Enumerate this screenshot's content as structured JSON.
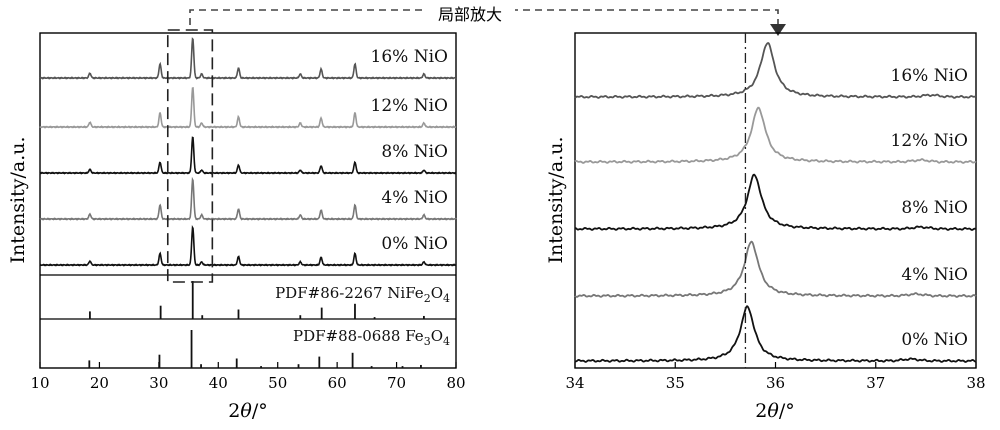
{
  "annotation": {
    "zoom_label": "局部放大"
  },
  "chart_data": [
    {
      "type": "line",
      "panel": "left",
      "xlabel_main": "2",
      "xlabel_symbol": "θ",
      "xlabel_unit": "/°",
      "ylabel": "Intensity/a.u.",
      "xlim": [
        10,
        80
      ],
      "xticks": [
        10,
        20,
        30,
        40,
        50,
        60,
        70,
        80
      ],
      "zoom_box_x": [
        31.5,
        39.0
      ],
      "series": [
        {
          "name": "16% NiO",
          "color": "#555555",
          "peaks": [
            [
              18.4,
              0.12
            ],
            [
              30.2,
              0.35
            ],
            [
              35.7,
              1.0
            ],
            [
              37.2,
              0.1
            ],
            [
              43.4,
              0.25
            ],
            [
              53.8,
              0.1
            ],
            [
              57.3,
              0.22
            ],
            [
              63.0,
              0.35
            ],
            [
              74.6,
              0.1
            ]
          ]
        },
        {
          "name": "12% NiO",
          "color": "#999999",
          "peaks": [
            [
              18.4,
              0.12
            ],
            [
              30.2,
              0.35
            ],
            [
              35.7,
              1.0
            ],
            [
              37.2,
              0.1
            ],
            [
              43.4,
              0.25
            ],
            [
              53.8,
              0.1
            ],
            [
              57.3,
              0.22
            ],
            [
              63.0,
              0.35
            ],
            [
              74.6,
              0.1
            ]
          ]
        },
        {
          "name": "8% NiO",
          "color": "#111111",
          "peaks": [
            [
              18.4,
              0.1
            ],
            [
              30.2,
              0.3
            ],
            [
              35.7,
              1.0
            ],
            [
              37.2,
              0.08
            ],
            [
              43.4,
              0.22
            ],
            [
              53.8,
              0.08
            ],
            [
              57.3,
              0.2
            ],
            [
              63.0,
              0.3
            ],
            [
              74.6,
              0.08
            ]
          ]
        },
        {
          "name": "4% NiO",
          "color": "#777777",
          "peaks": [
            [
              18.4,
              0.12
            ],
            [
              30.2,
              0.35
            ],
            [
              35.7,
              1.0
            ],
            [
              37.2,
              0.1
            ],
            [
              43.4,
              0.25
            ],
            [
              53.8,
              0.1
            ],
            [
              57.3,
              0.22
            ],
            [
              63.0,
              0.35
            ],
            [
              74.6,
              0.1
            ]
          ]
        },
        {
          "name": "0% NiO",
          "color": "#111111",
          "peaks": [
            [
              18.4,
              0.1
            ],
            [
              30.2,
              0.3
            ],
            [
              35.7,
              1.0
            ],
            [
              37.2,
              0.08
            ],
            [
              43.4,
              0.22
            ],
            [
              53.8,
              0.08
            ],
            [
              57.3,
              0.2
            ],
            [
              63.0,
              0.3
            ],
            [
              74.6,
              0.08
            ]
          ]
        }
      ],
      "references": [
        {
          "label_main": "PDF#86-2267 NiFe",
          "label_sub1": "2",
          "label_mid": "O",
          "label_sub2": "4",
          "sticks": [
            [
              18.4,
              0.2
            ],
            [
              30.3,
              0.35
            ],
            [
              35.7,
              1.0
            ],
            [
              37.3,
              0.1
            ],
            [
              43.4,
              0.25
            ],
            [
              53.8,
              0.1
            ],
            [
              57.4,
              0.3
            ],
            [
              63.0,
              0.4
            ],
            [
              66.3,
              0.05
            ],
            [
              74.6,
              0.08
            ]
          ]
        },
        {
          "label_main": "PDF#88-0688 Fe",
          "label_sub1": "3",
          "label_mid": "O",
          "label_sub2": "4",
          "sticks": [
            [
              18.3,
              0.2
            ],
            [
              30.1,
              0.35
            ],
            [
              35.5,
              1.0
            ],
            [
              37.1,
              0.1
            ],
            [
              43.1,
              0.25
            ],
            [
              47.2,
              0.05
            ],
            [
              53.5,
              0.1
            ],
            [
              57.0,
              0.3
            ],
            [
              62.6,
              0.4
            ],
            [
              65.8,
              0.05
            ],
            [
              71.0,
              0.05
            ],
            [
              74.1,
              0.08
            ]
          ]
        }
      ]
    },
    {
      "type": "line",
      "panel": "right",
      "xlabel_main": "2",
      "xlabel_symbol": "θ",
      "xlabel_unit": "/°",
      "ylabel": "Intensity/a.u.",
      "xlim": [
        34,
        38
      ],
      "xticks": [
        34,
        35,
        36,
        37,
        38
      ],
      "reference_line_x": 35.7,
      "series": [
        {
          "name": "16% NiO",
          "color": "#555555",
          "peak_x": 35.92,
          "peak_height": 0.36,
          "minor_x": 37.55
        },
        {
          "name": "12% NiO",
          "color": "#999999",
          "peak_x": 35.83,
          "peak_height": 0.36,
          "minor_x": 37.45
        },
        {
          "name": "8% NiO",
          "color": "#111111",
          "peak_x": 35.79,
          "peak_height": 0.36,
          "minor_x": 37.45
        },
        {
          "name": "4% NiO",
          "color": "#777777",
          "peak_x": 35.76,
          "peak_height": 0.36,
          "minor_x": 37.4
        },
        {
          "name": "0% NiO",
          "color": "#111111",
          "peak_x": 35.72,
          "peak_height": 0.36,
          "minor_x": 37.35
        }
      ]
    }
  ]
}
